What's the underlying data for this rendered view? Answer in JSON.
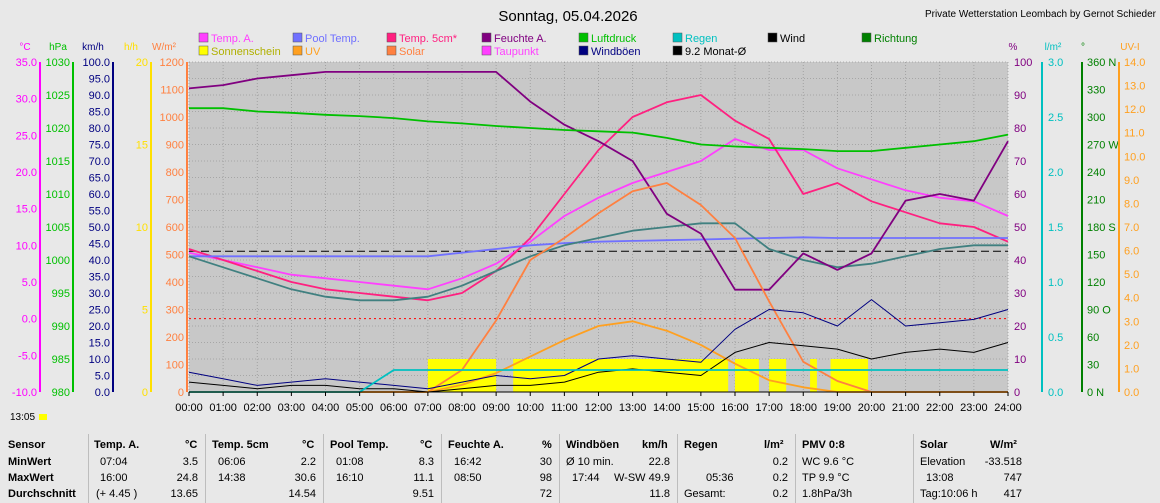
{
  "header": {
    "title": "Sonntag, 05.04.2026",
    "credit": "Private Wetterstation Leombach by Gernot Schieder"
  },
  "time_label": "13:05",
  "legend": [
    {
      "label": "Temp. A.",
      "color": "#ff40ff"
    },
    {
      "label": "Sonnenschein",
      "color": "#ffff00"
    },
    {
      "label": "Pool Temp.",
      "color": "#7070ff"
    },
    {
      "label": "UV",
      "color": "#ffa020"
    },
    {
      "label": "Temp. 5cm*",
      "color": "#ff2080"
    },
    {
      "label": "Solar",
      "color": "#ff8040"
    },
    {
      "label": "Feuchte A.",
      "color": "#800080"
    },
    {
      "label": "Taupunkt",
      "color": "#ff40ff"
    },
    {
      "label": "Luftdruck",
      "color": "#00c000"
    },
    {
      "label": "Windböen",
      "color": "#000080"
    },
    {
      "label": "Regen",
      "color": "#00c0c0"
    },
    {
      "label": "9.2 Monat-Ø",
      "color": "#000000"
    },
    {
      "label": "Wind",
      "color": "#000000"
    },
    {
      "label": "Richtung",
      "color": "#008000"
    }
  ],
  "axis_units": {
    "temp": "°C",
    "press": "hPa",
    "wind": "km/h",
    "sun": "h/h",
    "solar": "W/m²",
    "hum": "%",
    "rain": "l/m²",
    "dir": "°",
    "uv": "UV-I"
  },
  "axes": {
    "temp": [
      "35.0",
      "30.0",
      "25.0",
      "20.0",
      "15.0",
      "10.0",
      "5.0",
      "0.0",
      "-5.0",
      "-10.0"
    ],
    "press": [
      "1030",
      "1025",
      "1020",
      "1015",
      "1010",
      "1005",
      "1000",
      "995",
      "990",
      "985",
      "980"
    ],
    "wind": [
      "100.0",
      "95.0",
      "90.0",
      "85.0",
      "80.0",
      "75.0",
      "70.0",
      "65.0",
      "60.0",
      "55.0",
      "50.0",
      "45.0",
      "40.0",
      "35.0",
      "30.0",
      "25.0",
      "20.0",
      "15.0",
      "10.0",
      "5.0",
      "0.0"
    ],
    "sun": [
      "20",
      "15",
      "10",
      "5",
      "0"
    ],
    "solar": [
      "1200",
      "1100",
      "1000",
      "900",
      "800",
      "700",
      "600",
      "500",
      "400",
      "300",
      "200",
      "100",
      "0"
    ],
    "hum": [
      "100",
      "90",
      "80",
      "70",
      "60",
      "50",
      "40",
      "30",
      "20",
      "10",
      "0"
    ],
    "rain": [
      "3.0",
      "2.5",
      "2.0",
      "1.5",
      "1.0",
      "0.5",
      "0.0"
    ],
    "dir": [
      "360 N",
      "330",
      "300",
      "270 W",
      "240",
      "210",
      "180 S",
      "150",
      "120",
      "90 O",
      "60",
      "30",
      "0 N"
    ],
    "uv": [
      "14.0",
      "13.0",
      "12.0",
      "11.0",
      "10.0",
      "9.0",
      "8.0",
      "7.0",
      "6.0",
      "5.0",
      "4.0",
      "3.0",
      "2.0",
      "1.0",
      "0.0"
    ]
  },
  "chart_data": {
    "type": "line",
    "x_ticks": [
      "00:00",
      "01:00",
      "02:00",
      "03:00",
      "04:00",
      "05:00",
      "06:00",
      "07:00",
      "08:00",
      "09:00",
      "10:00",
      "11:00",
      "12:00",
      "13:00",
      "14:00",
      "15:00",
      "16:00",
      "17:00",
      "18:00",
      "19:00",
      "20:00",
      "21:00",
      "22:00",
      "23:00",
      "24:00"
    ],
    "hours": [
      0,
      1,
      2,
      3,
      4,
      5,
      6,
      7,
      8,
      9,
      10,
      11,
      12,
      13,
      14,
      15,
      16,
      17,
      18,
      19,
      20,
      21,
      22,
      23,
      24
    ],
    "series": [
      {
        "name": "Temp. A.",
        "unit": "°C",
        "color": "#ff40ff",
        "values": [
          9.0,
          8.0,
          7.0,
          6.0,
          5.5,
          5.0,
          4.5,
          4.0,
          5.5,
          7.5,
          10.5,
          14.0,
          16.5,
          18.5,
          20.0,
          21.5,
          24.5,
          23.0,
          23.0,
          20.5,
          19.0,
          17.5,
          16.5,
          16.0,
          14.0
        ]
      },
      {
        "name": "Temp. 5cm*",
        "unit": "°C",
        "color": "#ff2080",
        "values": [
          9.5,
          8.0,
          6.5,
          5.0,
          4.0,
          3.5,
          3.0,
          2.5,
          3.5,
          6.5,
          11.0,
          17.0,
          23.0,
          27.5,
          29.5,
          30.5,
          27.0,
          24.5,
          17.0,
          18.5,
          16.0,
          14.5,
          13.0,
          12.5,
          10.5
        ]
      },
      {
        "name": "Pool Temp.",
        "unit": "°C",
        "color": "#7070ff",
        "values": [
          8.5,
          8.5,
          8.5,
          8.5,
          8.5,
          8.5,
          8.5,
          8.5,
          9.0,
          9.5,
          10.0,
          10.3,
          10.5,
          10.6,
          10.7,
          10.8,
          10.9,
          11.0,
          11.1,
          11.0,
          11.0,
          11.0,
          11.0,
          11.0,
          11.0
        ]
      },
      {
        "name": "Taupunkt",
        "unit": "°C",
        "color": "#408080",
        "values": [
          8.5,
          7.0,
          5.5,
          4.0,
          3.0,
          2.5,
          2.5,
          3.0,
          4.5,
          6.5,
          8.5,
          10.0,
          11.0,
          12.0,
          12.5,
          13.0,
          13.0,
          9.5,
          8.0,
          7.0,
          7.5,
          8.5,
          9.5,
          10.0,
          10.0
        ]
      },
      {
        "name": "Feuchte A.",
        "unit": "%",
        "color": "#800080",
        "values": [
          92,
          93,
          95,
          96,
          97,
          97,
          97,
          97,
          97,
          97,
          88,
          81,
          76,
          70,
          54,
          48,
          31,
          31,
          42,
          37,
          42,
          58,
          60,
          58,
          76
        ]
      },
      {
        "name": "Luftdruck",
        "unit": "hPa",
        "color": "#00c000",
        "values": [
          1023.0,
          1023.0,
          1022.5,
          1022.3,
          1022.0,
          1021.8,
          1021.5,
          1021.0,
          1020.7,
          1020.3,
          1020.0,
          1019.7,
          1019.5,
          1019.3,
          1018.5,
          1017.5,
          1017.2,
          1017.0,
          1016.8,
          1016.5,
          1016.5,
          1017.0,
          1017.5,
          1018.0,
          1019.0
        ]
      },
      {
        "name": "Solar",
        "unit": "W/m²",
        "color": "#ff8040",
        "values": [
          0,
          0,
          0,
          0,
          0,
          0,
          0,
          0,
          80,
          260,
          480,
          560,
          650,
          730,
          760,
          680,
          560,
          330,
          110,
          40,
          0,
          0,
          0,
          0,
          0
        ]
      },
      {
        "name": "UV",
        "unit": "UV-I",
        "color": "#ffa020",
        "values": [
          0,
          0,
          0,
          0,
          0,
          0,
          0,
          0,
          0.3,
          0.8,
          1.5,
          2.2,
          2.8,
          3.0,
          2.6,
          2.0,
          1.2,
          0.5,
          0.2,
          0,
          0,
          0,
          0,
          0,
          0
        ]
      },
      {
        "name": "Windböen",
        "unit": "km/h",
        "color": "#000080",
        "values": [
          6,
          4,
          2,
          3,
          4,
          3,
          2,
          1,
          3,
          5,
          4,
          5,
          10,
          11,
          10,
          9,
          19,
          25,
          24,
          20,
          28,
          20,
          21,
          22,
          25
        ]
      },
      {
        "name": "Wind",
        "unit": "km/h",
        "color": "#000000",
        "values": [
          3,
          2,
          1,
          2,
          2,
          1,
          1,
          0,
          1,
          2,
          2,
          3,
          6,
          7,
          6,
          5,
          12,
          15,
          14,
          13,
          10,
          12,
          13,
          12,
          15
        ]
      },
      {
        "name": "Regen",
        "unit": "l/m²",
        "color": "#00c0c0",
        "values": [
          0,
          0,
          0,
          0,
          0,
          0,
          0.2,
          0.2,
          0.2,
          0.2,
          0.2,
          0.2,
          0.2,
          0.2,
          0.2,
          0.2,
          0.2,
          0.2,
          0.2,
          0.2,
          0.2,
          0.2,
          0.2,
          0.2,
          0.2
        ]
      }
    ],
    "sunshine_bands": [
      [
        7.0,
        9.0
      ],
      [
        9.5,
        15.8
      ],
      [
        16.0,
        16.7
      ],
      [
        17.0,
        17.5
      ],
      [
        18.2,
        18.4
      ],
      [
        18.8,
        19.9
      ]
    ],
    "reference_lines": [
      {
        "name": "9.2 Monat-Ø",
        "unit": "°C",
        "value": 9.2,
        "color": "#000000",
        "style": "dashed"
      },
      {
        "name": "frost",
        "unit": "°C",
        "value": 0.0,
        "color": "#ff0000",
        "style": "dotted"
      }
    ],
    "ylims": {
      "temp": [
        -10,
        35
      ],
      "hum": [
        0,
        100
      ],
      "press": [
        980,
        1030
      ],
      "solar": [
        0,
        1200
      ],
      "wind": [
        0,
        100
      ],
      "uv": [
        0,
        14
      ],
      "rain": [
        0,
        3
      ]
    },
    "grid": true
  },
  "stats": {
    "labels": [
      "Sensor",
      "MinWert",
      "MaxWert",
      "Durchschnitt"
    ],
    "temp": {
      "head": "Temp. A.",
      "unit": "°C",
      "min_time": "07:04",
      "min": "3.5",
      "max_time": "16:00",
      "max": "24.8",
      "avg_note": "(+ 4.45 )",
      "avg": "13.65"
    },
    "temp5": {
      "head": "Temp. 5cm",
      "unit": "°C",
      "min_time": "06:06",
      "min": "2.2",
      "max_time": "14:38",
      "max": "30.6",
      "avg": "14.54"
    },
    "pool": {
      "head": "Pool Temp.",
      "unit": "°C",
      "min_time": "01:08",
      "min": "8.3",
      "max_time": "16:10",
      "max": "11.1",
      "avg": "9.51"
    },
    "hum": {
      "head": "Feuchte A.",
      "unit": "%",
      "min_time": "16:42",
      "min": "30",
      "max_time": "08:50",
      "max": "98",
      "avg": "72"
    },
    "gust": {
      "head": "Windböen",
      "unit": "km/h",
      "min_time": "Ø 10 min.",
      "min": "22.8",
      "max_time": "17:44",
      "max_dir": "W-SW 49.9",
      "avg": "11.8"
    },
    "rain": {
      "head": "Regen",
      "unit": "l/m²",
      "min": "0.2",
      "max_time": "05:36",
      "max": "0.2",
      "total_label": "Gesamt:",
      "total": "0.2"
    },
    "pmv": {
      "head": "PMV 0:8",
      "wc": "WC 9.6 °C",
      "tp": "TP 9.9 °C",
      "trend": "1.8hPa/3h"
    },
    "solar": {
      "head": "Solar",
      "unit": "W/m²",
      "elev_label": "Elevation",
      "elev": "-33.518",
      "max_time": "13:08",
      "max": "747",
      "day_label": "Tag:10:06 h",
      "avg": "417"
    }
  }
}
